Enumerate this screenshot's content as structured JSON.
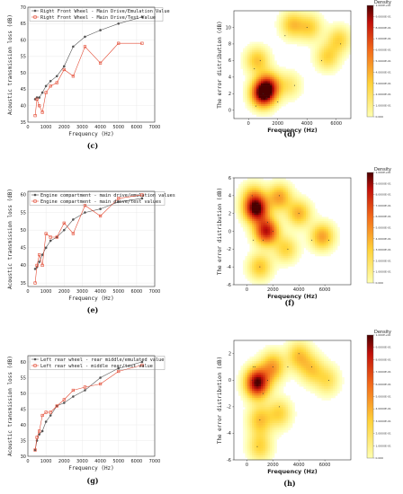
{
  "chart_data": [
    {
      "id": "c",
      "type": "line",
      "caption": "(c)",
      "xlabel": "Frequency (Hz)",
      "ylabel": "Acoustic transmission loss (dB)",
      "xlim": [
        0,
        7000
      ],
      "ylim": [
        35,
        70
      ],
      "xticks": [
        0,
        1000,
        2000,
        3000,
        4000,
        5000,
        6000,
        7000
      ],
      "yticks": [
        35,
        40,
        45,
        50,
        55,
        60,
        65,
        70
      ],
      "series": [
        {
          "name": "Right Front Wheel - Main Drive/Emulation Value",
          "color": "#555555",
          "marker": "circle",
          "x": [
            400,
            500,
            630,
            800,
            1000,
            1250,
            1600,
            2000,
            2500,
            3150,
            4000,
            5000,
            6300
          ],
          "y": [
            42,
            42.5,
            42.5,
            44,
            46,
            47.5,
            49,
            52,
            58,
            61,
            63,
            65,
            67
          ]
        },
        {
          "name": "Right Front Wheel - Main Drive/Test Value",
          "color": "#e34a33",
          "marker": "square",
          "x": [
            400,
            500,
            630,
            800,
            1000,
            1250,
            1600,
            2000,
            2500,
            3150,
            4000,
            5000,
            6300
          ],
          "y": [
            37,
            42,
            40,
            38,
            44,
            46,
            47,
            51,
            49,
            58,
            53,
            59,
            59
          ]
        }
      ]
    },
    {
      "id": "e",
      "type": "line",
      "caption": "(e)",
      "xlabel": "Frequency (Hz)",
      "ylabel": "Acoustic transmission loss (dB)",
      "xlim": [
        0,
        7000
      ],
      "ylim": [
        34,
        61
      ],
      "xticks": [
        0,
        1000,
        2000,
        3000,
        4000,
        5000,
        6000,
        7000
      ],
      "yticks": [
        35,
        40,
        45,
        50,
        55,
        60
      ],
      "series": [
        {
          "name": "Engine compartment - main drive/emulation values",
          "color": "#555555",
          "marker": "circle",
          "x": [
            400,
            500,
            630,
            800,
            1000,
            1250,
            1600,
            2000,
            2500,
            3150,
            4000,
            5000,
            6300
          ],
          "y": [
            39,
            39.5,
            41,
            43,
            45,
            47,
            48,
            50,
            53,
            55,
            56,
            58,
            59
          ]
        },
        {
          "name": "Engine compartment - main drive/test values",
          "color": "#e34a33",
          "marker": "square",
          "x": [
            400,
            500,
            630,
            800,
            1000,
            1250,
            1600,
            2000,
            2500,
            3150,
            4000,
            5000,
            6300
          ],
          "y": [
            35,
            40,
            43,
            40,
            49,
            48,
            48,
            52,
            49,
            57,
            54,
            59,
            60
          ]
        }
      ]
    },
    {
      "id": "g",
      "type": "line",
      "caption": "(g)",
      "xlabel": "Frequency (Hz)",
      "ylabel": "Acoustic transmission loss (dB)",
      "xlim": [
        0,
        7000
      ],
      "ylim": [
        30,
        62
      ],
      "xticks": [
        0,
        1000,
        2000,
        3000,
        4000,
        5000,
        6000,
        7000
      ],
      "yticks": [
        30,
        35,
        40,
        45,
        50,
        55,
        60
      ],
      "series": [
        {
          "name": "Left rear wheel - rear middle/emulated value",
          "color": "#555555",
          "marker": "circle",
          "x": [
            400,
            500,
            630,
            800,
            1000,
            1250,
            1600,
            2000,
            2500,
            3150,
            4000,
            5000,
            6300
          ],
          "y": [
            32,
            35,
            37,
            38,
            41,
            43,
            46,
            47,
            49,
            51,
            55,
            58,
            60
          ]
        },
        {
          "name": "Left rear wheel - middle rear/test value",
          "color": "#e34a33",
          "marker": "square",
          "x": [
            400,
            500,
            630,
            800,
            1000,
            1250,
            1600,
            2000,
            2500,
            3150,
            4000,
            5000,
            6300
          ],
          "y": [
            32,
            36,
            38,
            43,
            44,
            44,
            46,
            48,
            51,
            52,
            53,
            57,
            59
          ]
        }
      ]
    },
    {
      "id": "d",
      "type": "heatmap",
      "caption": "(d)",
      "xlabel": "Frequency (Hz)",
      "ylabel": "The error distribution (dB)",
      "xlim": [
        -1000,
        7000
      ],
      "ylim": [
        -1,
        12
      ],
      "xticks": [
        0,
        2000,
        4000,
        6000
      ],
      "yticks": [
        0,
        2,
        4,
        6,
        8,
        10
      ],
      "colorbar_title": "Density",
      "colorbar_ticks": [
        "0.000",
        "1.0000E-01",
        "2.0000E-01",
        "3.0000E-01",
        "4.0000E-01",
        "5.0000E-01",
        "6.0000E-01",
        "7.0000E-01",
        "8.0000E-01",
        "9.0000E-01",
        "1.000E+00"
      ],
      "points": [
        [
          400,
          5
        ],
        [
          500,
          0.5
        ],
        [
          630,
          2.5
        ],
        [
          800,
          6
        ],
        [
          1000,
          2
        ],
        [
          1250,
          1.5
        ],
        [
          1600,
          2
        ],
        [
          2000,
          1
        ],
        [
          2500,
          9
        ],
        [
          3150,
          3
        ],
        [
          4000,
          10
        ],
        [
          5000,
          6
        ],
        [
          6300,
          8
        ]
      ],
      "blobs": [
        [
          1000,
          2,
          1.0
        ],
        [
          1400,
          3,
          0.55
        ],
        [
          3000,
          10.3,
          0.35
        ],
        [
          4200,
          10,
          0.3
        ],
        [
          5400,
          6.4,
          0.3
        ],
        [
          6200,
          8.5,
          0.3
        ],
        [
          600,
          6,
          0.35
        ],
        [
          2800,
          3,
          0.2
        ]
      ]
    },
    {
      "id": "f",
      "type": "heatmap",
      "caption": "(f)",
      "xlabel": "Frequency (Hz)",
      "ylabel": "The error distribution (dB)",
      "xlim": [
        -1000,
        8000
      ],
      "ylim": [
        -6,
        6
      ],
      "xticks": [
        0,
        2000,
        4000,
        6000
      ],
      "yticks": [
        -6,
        -4,
        -2,
        0,
        2,
        4,
        6
      ],
      "colorbar_title": "Density",
      "colorbar_ticks": [
        "0.000",
        "1.0000E-01",
        "2.0000E-01",
        "3.0000E-01",
        "4.0000E-01",
        "5.0000E-01",
        "6.0000E-01",
        "7.0000E-01",
        "8.0000E-01",
        "9.0000E-01",
        "1.000E+00"
      ],
      "points": [
        [
          400,
          4
        ],
        [
          500,
          -1
        ],
        [
          630,
          2
        ],
        [
          800,
          3
        ],
        [
          1000,
          -4
        ],
        [
          1250,
          -1
        ],
        [
          1600,
          1
        ],
        [
          2000,
          0
        ],
        [
          2500,
          4
        ],
        [
          3150,
          -2
        ],
        [
          4000,
          2
        ],
        [
          5000,
          -1
        ],
        [
          6300,
          -1
        ]
      ],
      "blobs": [
        [
          700,
          2.5,
          1.0
        ],
        [
          1500,
          0,
          0.85
        ],
        [
          1000,
          -4,
          0.35
        ],
        [
          2500,
          3.8,
          0.45
        ],
        [
          4000,
          2,
          0.4
        ],
        [
          5800,
          -0.6,
          0.45
        ],
        [
          3000,
          -2,
          0.3
        ],
        [
          500,
          4,
          0.3
        ]
      ]
    },
    {
      "id": "h",
      "type": "heatmap",
      "caption": "(h)",
      "xlabel": "Frequency (Hz)",
      "ylabel": "The error distribution (dB)",
      "xlim": [
        -1000,
        8000
      ],
      "ylim": [
        -6,
        3
      ],
      "xticks": [
        0,
        2000,
        4000,
        6000
      ],
      "yticks": [
        -6,
        -4,
        -2,
        0,
        2
      ],
      "colorbar_title": "Density",
      "colorbar_ticks": [
        "0.000",
        "1.0000E-01",
        "2.0000E-01",
        "3.0000E-01",
        "4.0000E-01",
        "5.0000E-01",
        "6.0000E-01",
        "7.0000E-01",
        "8.0000E-01",
        "9.0000E-01",
        "1.000E+00"
      ],
      "points": [
        [
          400,
          0
        ],
        [
          500,
          1
        ],
        [
          630,
          1
        ],
        [
          800,
          -5
        ],
        [
          1000,
          -3
        ],
        [
          1250,
          -1
        ],
        [
          1600,
          0
        ],
        [
          2000,
          1
        ],
        [
          2500,
          -2
        ],
        [
          3150,
          1
        ],
        [
          4000,
          2
        ],
        [
          5000,
          1
        ],
        [
          6300,
          0
        ]
      ],
      "blobs": [
        [
          800,
          -0.2,
          1.0
        ],
        [
          2000,
          1,
          0.45
        ],
        [
          1000,
          -3,
          0.35
        ],
        [
          1000,
          -5,
          0.3
        ],
        [
          2500,
          -2.5,
          0.3
        ],
        [
          4000,
          1.8,
          0.35
        ],
        [
          5000,
          0.8,
          0.3
        ],
        [
          6200,
          0,
          0.25
        ]
      ]
    }
  ]
}
